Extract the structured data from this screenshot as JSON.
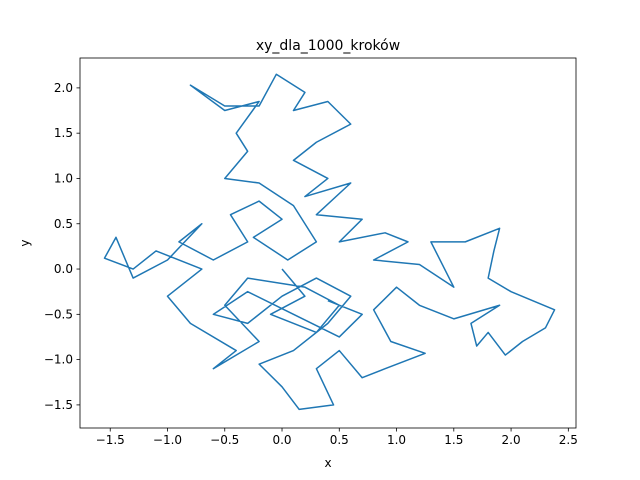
{
  "chart_data": {
    "type": "line",
    "title": "xy_dla_1000_kroków",
    "xlabel": "x",
    "ylabel": "y",
    "series": [
      {
        "color": "#1f77b4",
        "x": [
          0,
          0.2,
          -0.1,
          0.3,
          0.5,
          0.2,
          -0.3,
          -0.5,
          -0.2,
          -0.6,
          -0.4,
          -0.8,
          -1.0,
          -0.7,
          -1.1,
          -1.3,
          -1.55,
          -1.45,
          -1.3,
          -1.0,
          -0.7,
          -0.9,
          -0.6,
          -0.3,
          -0.45,
          -0.2,
          0.0,
          -0.25,
          0.05,
          0.3,
          0.1,
          -0.2,
          -0.5,
          -0.3,
          -0.4,
          -0.2,
          -0.5,
          -0.8,
          -0.5,
          -0.2,
          -0.05,
          0.2,
          0.1,
          0.4,
          0.6,
          0.3,
          0.1,
          0.4,
          0.2,
          0.6,
          0.3,
          0.7,
          0.5,
          0.9,
          1.1,
          0.8,
          1.2,
          1.5,
          1.3,
          1.6,
          1.9,
          1.85,
          1.8,
          2.0,
          2.38,
          2.3,
          2.1,
          1.95,
          1.8,
          1.7,
          1.65,
          1.9,
          1.5,
          1.2,
          1.0,
          0.8,
          0.95,
          1.25,
          0.9,
          0.7,
          0.5,
          0.3,
          0.45,
          0.15,
          0.0,
          -0.2,
          0.1,
          0.4,
          0.6,
          0.3,
          0.0,
          -0.3,
          -0.6,
          -0.3,
          0.1,
          0.5,
          0.7,
          0.4
        ],
        "y": [
          0,
          -0.3,
          -0.5,
          -0.7,
          -0.4,
          -0.2,
          -0.1,
          -0.4,
          -0.8,
          -1.1,
          -0.9,
          -0.6,
          -0.3,
          0.0,
          0.2,
          0.0,
          0.12,
          0.35,
          -0.1,
          0.1,
          0.5,
          0.3,
          0.1,
          0.3,
          0.6,
          0.75,
          0.55,
          0.35,
          0.1,
          0.3,
          0.7,
          0.95,
          1.0,
          1.3,
          1.5,
          1.85,
          1.75,
          2.03,
          1.8,
          1.8,
          2.15,
          1.95,
          1.75,
          1.85,
          1.6,
          1.4,
          1.2,
          1.0,
          0.8,
          0.95,
          0.6,
          0.55,
          0.3,
          0.4,
          0.3,
          0.1,
          0.05,
          -0.2,
          0.3,
          0.3,
          0.45,
          0.2,
          -0.1,
          -0.25,
          -0.45,
          -0.65,
          -0.8,
          -0.95,
          -0.7,
          -0.85,
          -0.6,
          -0.4,
          -0.55,
          -0.4,
          -0.2,
          -0.45,
          -0.8,
          -0.93,
          -1.1,
          -1.2,
          -0.9,
          -1.1,
          -1.5,
          -1.55,
          -1.3,
          -1.05,
          -0.9,
          -0.6,
          -0.3,
          -0.1,
          -0.3,
          -0.6,
          -0.5,
          -0.25,
          -0.5,
          -0.75,
          -0.5,
          -0.35
        ]
      }
    ],
    "xlim": [
      -1.764,
      2.567
    ],
    "ylim": [
      -1.755,
      2.33
    ],
    "xticks": [
      {
        "value": -1.5,
        "label": "−1.5"
      },
      {
        "value": -1.0,
        "label": "−1.0"
      },
      {
        "value": -0.5,
        "label": "−0.5"
      },
      {
        "value": 0,
        "label": "0.0"
      },
      0.5,
      {
        "value": 1,
        "label": "1.0"
      },
      1.5,
      {
        "value": 2,
        "label": "2.0"
      },
      2.5
    ],
    "yticks": [
      {
        "value": -1.5,
        "label": "−1.5"
      },
      {
        "value": -1.0,
        "label": "−1.0"
      },
      {
        "value": -0.5,
        "label": "−0.5"
      },
      {
        "value": 0,
        "label": "0.0"
      },
      0.5,
      {
        "value": 1,
        "label": "1.0"
      },
      1.5,
      {
        "value": 2,
        "label": "2.0"
      }
    ]
  }
}
